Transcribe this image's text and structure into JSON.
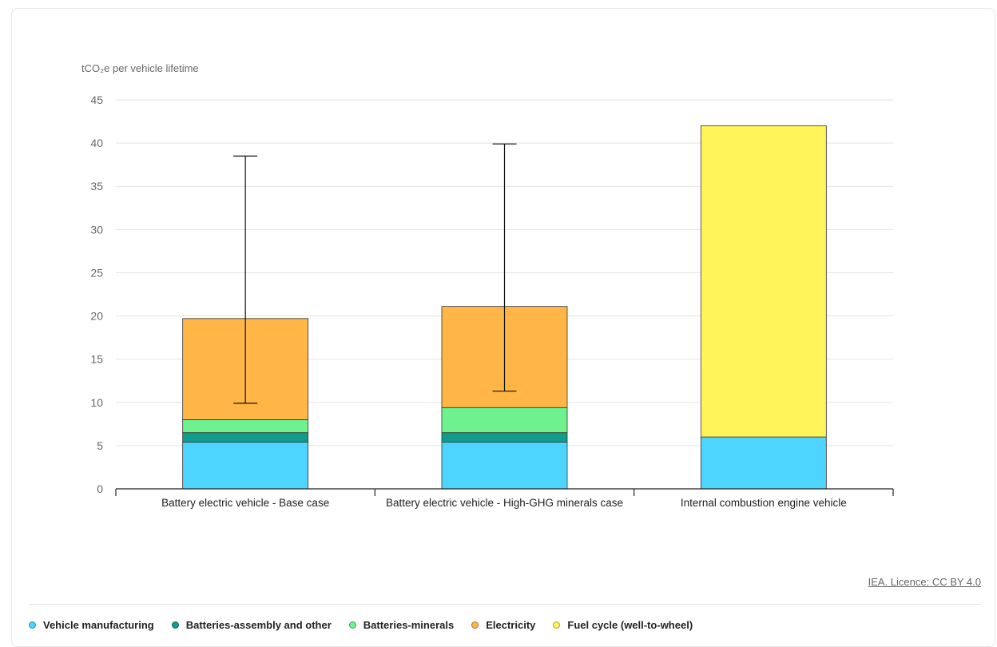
{
  "chart_data": {
    "type": "bar",
    "stacked": true,
    "ylabel": "tCO₂e per vehicle lifetime",
    "ylim": [
      0,
      45
    ],
    "yticks": [
      0,
      5,
      10,
      15,
      20,
      25,
      30,
      35,
      40,
      45
    ],
    "grid": true,
    "legend_position": "bottom",
    "categories": [
      "Battery electric vehicle - Base case",
      "Battery electric vehicle - High-GHG minerals case",
      "Internal combustion engine vehicle"
    ],
    "series": [
      {
        "name": "Vehicle manufacturing",
        "color": "#4dd4ff",
        "values": [
          5.4,
          5.4,
          6.0
        ]
      },
      {
        "name": "Batteries-assembly and other",
        "color": "#129c8c",
        "values": [
          1.1,
          1.1,
          0
        ]
      },
      {
        "name": "Batteries-minerals",
        "color": "#6df28f",
        "values": [
          1.5,
          2.9,
          0
        ]
      },
      {
        "name": "Electricity",
        "color": "#ffb646",
        "values": [
          11.7,
          11.7,
          0
        ]
      },
      {
        "name": "Fuel cycle (well-to-wheel)",
        "color": "#fff45a",
        "values": [
          0,
          0,
          36.0
        ]
      }
    ],
    "error_bars": [
      {
        "category": "Battery electric vehicle - Base case",
        "low": 9.9,
        "high": 38.5
      },
      {
        "category": "Battery electric vehicle - High-GHG minerals case",
        "low": 11.3,
        "high": 39.9
      }
    ]
  },
  "credit": "IEA. Licence: CC BY 4.0"
}
